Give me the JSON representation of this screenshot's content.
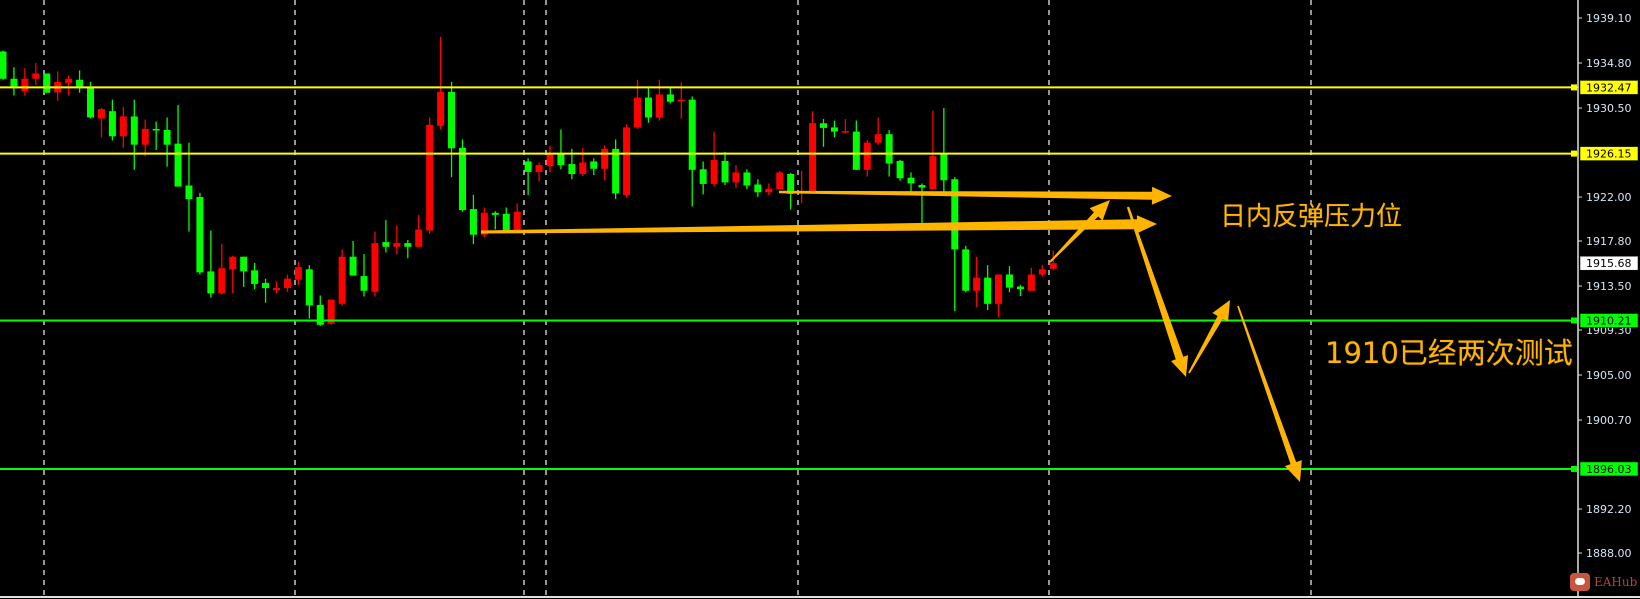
{
  "chart_data": {
    "type": "candlestick",
    "bull_color": "#FF0000",
    "bear_color": "#00FF00",
    "background": "#000000",
    "ylim": [
      1886.5,
      1940.8
    ],
    "y_ticks": [
      "1939.10",
      "1934.80",
      "1930.50",
      "1922.00",
      "1917.80",
      "1913.50",
      "1909.30",
      "1905.00",
      "1900.70",
      "1892.20",
      "1888.00"
    ],
    "grid": "vertical dashed",
    "current_price": "1915.68",
    "levels": [
      {
        "price": 1932.47,
        "label": "1932.47",
        "color": "#FFFF00"
      },
      {
        "price": 1926.15,
        "label": "1926.15",
        "color": "#FFFF00"
      },
      {
        "price": 1910.21,
        "label": "1910.21",
        "color": "#00FF00"
      },
      {
        "price": 1896.03,
        "label": "1896.03",
        "color": "#00FF00"
      }
    ],
    "ohlc": [
      [
        1935.9,
        1936.0,
        1933.2,
        1933.3
      ],
      [
        1933.3,
        1934.4,
        1931.7,
        1932.4
      ],
      [
        1932.1,
        1934.3,
        1931.7,
        1933.3
      ],
      [
        1933.3,
        1934.8,
        1932.7,
        1933.8
      ],
      [
        1933.8,
        1933.8,
        1931.96,
        1931.96
      ],
      [
        1932.0,
        1934.0,
        1931.2,
        1933.0
      ],
      [
        1932.9,
        1933.6,
        1931.7,
        1933.3
      ],
      [
        1933.2,
        1934.1,
        1931.96,
        1932.4
      ],
      [
        1932.5,
        1933.0,
        1929.5,
        1929.6
      ],
      [
        1929.5,
        1930.5,
        1927.7,
        1930.4
      ],
      [
        1930.2,
        1931.3,
        1927.4,
        1927.8
      ],
      [
        1927.8,
        1930.6,
        1926.7,
        1929.7
      ],
      [
        1929.7,
        1931.3,
        1924.6,
        1927.0
      ],
      [
        1927.0,
        1929.4,
        1925.9,
        1928.5
      ],
      [
        1928.5,
        1929.2,
        1926.5,
        1928.4
      ],
      [
        1928.4,
        1929.6,
        1924.9,
        1927.0
      ],
      [
        1927.1,
        1930.8,
        1923.0,
        1923.0
      ],
      [
        1923.1,
        1927.2,
        1918.7,
        1921.8
      ],
      [
        1922.0,
        1922.4,
        1914.6,
        1914.8
      ],
      [
        1914.9,
        1918.8,
        1912.4,
        1912.8
      ],
      [
        1912.8,
        1917.5,
        1912.7,
        1915.2
      ],
      [
        1915.1,
        1916.4,
        1912.8,
        1916.3
      ],
      [
        1916.3,
        1916.3,
        1913.4,
        1914.9
      ],
      [
        1915.0,
        1915.7,
        1913.2,
        1913.7
      ],
      [
        1913.8,
        1914.2,
        1911.9,
        1913.3
      ],
      [
        1913.1,
        1913.97,
        1912.8,
        1913.3
      ],
      [
        1913.3,
        1914.6,
        1912.95,
        1914.2
      ],
      [
        1914.1,
        1915.8,
        1913.6,
        1915.3
      ],
      [
        1915.1,
        1915.5,
        1910.4,
        1911.65
      ],
      [
        1911.7,
        1912.6,
        1909.7,
        1909.8
      ],
      [
        1909.9,
        1912.2,
        1909.8,
        1912.2
      ],
      [
        1911.8,
        1917.0,
        1911.6,
        1916.3
      ],
      [
        1916.3,
        1917.8,
        1914.5,
        1914.5
      ],
      [
        1914.45,
        1916.55,
        1912.5,
        1913.05
      ],
      [
        1912.95,
        1918.7,
        1912.5,
        1917.6
      ],
      [
        1917.7,
        1919.8,
        1916.7,
        1917.25
      ],
      [
        1917.25,
        1919.3,
        1916.55,
        1917.6
      ],
      [
        1917.6,
        1917.9,
        1916.15,
        1917.25
      ],
      [
        1917.25,
        1920.3,
        1917.25,
        1918.9
      ],
      [
        1918.8,
        1929.6,
        1918.5,
        1928.9
      ],
      [
        1928.8,
        1937.3,
        1928.45,
        1932.05
      ],
      [
        1932.05,
        1933.0,
        1923.9,
        1926.65
      ],
      [
        1926.7,
        1927.5,
        1920.6,
        1920.75
      ],
      [
        1920.85,
        1922.2,
        1917.5,
        1918.4
      ],
      [
        1918.4,
        1921.0,
        1918.15,
        1920.5
      ],
      [
        1920.5,
        1920.65,
        1918.9,
        1920.3
      ],
      [
        1920.4,
        1921.0,
        1918.7,
        1918.75
      ],
      [
        1918.8,
        1921.4,
        1918.75,
        1920.6
      ],
      [
        1925.4,
        1925.7,
        1922.2,
        1924.4
      ],
      [
        1924.4,
        1925.3,
        1923.5,
        1925.05
      ],
      [
        1924.95,
        1926.9,
        1924.4,
        1926.1
      ],
      [
        1926.2,
        1928.45,
        1924.65,
        1925.05
      ],
      [
        1925.15,
        1926.6,
        1923.7,
        1924.2
      ],
      [
        1924.2,
        1926.7,
        1924.0,
        1925.3
      ],
      [
        1925.4,
        1925.7,
        1924.1,
        1924.7
      ],
      [
        1924.7,
        1926.95,
        1923.6,
        1926.6
      ],
      [
        1926.6,
        1927.5,
        1921.8,
        1922.35
      ],
      [
        1922.2,
        1928.95,
        1921.95,
        1928.65
      ],
      [
        1928.65,
        1933.2,
        1928.5,
        1931.5
      ],
      [
        1931.5,
        1932.4,
        1929.1,
        1929.6
      ],
      [
        1929.6,
        1933.2,
        1929.3,
        1931.8
      ],
      [
        1931.8,
        1932.5,
        1930.95,
        1931.1
      ],
      [
        1931.2,
        1932.95,
        1929.5,
        1931.3
      ],
      [
        1931.3,
        1931.6,
        1921.1,
        1924.6
      ],
      [
        1924.65,
        1925.4,
        1922.25,
        1923.25
      ],
      [
        1923.25,
        1928.25,
        1923.0,
        1925.55
      ],
      [
        1925.45,
        1926.3,
        1923.15,
        1923.4
      ],
      [
        1923.4,
        1925.05,
        1922.85,
        1924.35
      ],
      [
        1924.35,
        1924.65,
        1922.75,
        1923.1
      ],
      [
        1923.2,
        1923.7,
        1922.0,
        1922.45
      ],
      [
        1922.45,
        1923.3,
        1922.2,
        1922.8
      ],
      [
        1922.75,
        1924.5,
        1922.75,
        1924.35
      ],
      [
        1924.2,
        1924.3,
        1920.8,
        1922.3
      ],
      [
        1922.35,
        1924.5,
        1921.4,
        1922.5
      ],
      [
        1922.55,
        1930.2,
        1922.35,
        1929.05
      ],
      [
        1929.05,
        1929.45,
        1926.8,
        1928.6
      ],
      [
        1928.65,
        1929.3,
        1927.7,
        1928.25
      ],
      [
        1928.2,
        1929.45,
        1928.1,
        1928.3
      ],
      [
        1928.25,
        1929.3,
        1924.6,
        1924.6
      ],
      [
        1924.6,
        1927.45,
        1923.95,
        1927.2
      ],
      [
        1927.2,
        1929.6,
        1927.0,
        1928.0
      ],
      [
        1928.0,
        1928.4,
        1923.95,
        1925.2
      ],
      [
        1925.45,
        1925.55,
        1923.55,
        1923.8
      ],
      [
        1923.85,
        1924.35,
        1922.35,
        1923.3
      ],
      [
        1923.15,
        1923.3,
        1919.5,
        1922.9
      ],
      [
        1922.75,
        1930.25,
        1922.75,
        1925.9
      ],
      [
        1926.1,
        1930.5,
        1922.5,
        1923.6
      ],
      [
        1923.7,
        1923.9,
        1911.1,
        1917.0
      ],
      [
        1917.0,
        1917.35,
        1912.9,
        1913.05
      ],
      [
        1913.05,
        1916.3,
        1911.5,
        1914.3
      ],
      [
        1914.3,
        1915.5,
        1911.2,
        1911.8
      ],
      [
        1911.8,
        1914.6,
        1910.5,
        1914.6
      ],
      [
        1914.6,
        1915.4,
        1912.9,
        1913.35
      ],
      [
        1913.45,
        1913.6,
        1912.55,
        1913.2
      ],
      [
        1913.05,
        1915.25,
        1913.05,
        1914.6
      ],
      [
        1914.6,
        1915.5,
        1914.4,
        1915.1
      ],
      [
        1915.15,
        1916.9,
        1915.05,
        1915.68
      ]
    ],
    "annotations": [
      {
        "text": "日内反弹压力位",
        "color": "#FFB400"
      },
      {
        "text": "1910已经两次测试",
        "color": "#FFB400"
      }
    ]
  },
  "watermark": "EAHub"
}
